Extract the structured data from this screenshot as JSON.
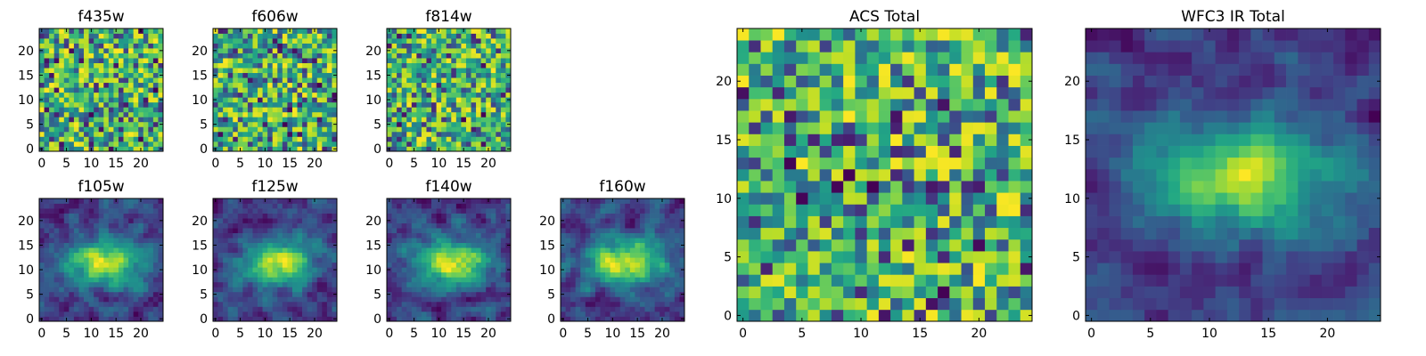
{
  "figure_title": "",
  "chart_data": [
    {
      "type": "heatmap",
      "id": "f435w",
      "title": "f435w",
      "texture": "noisy",
      "xlim": [
        -0.5,
        24.5
      ],
      "ylim": [
        -0.5,
        24.5
      ],
      "xticks": [
        0,
        5,
        10,
        15,
        20
      ],
      "xtick_labels": [
        "0",
        "5",
        "10",
        "15",
        "20"
      ],
      "yticks": [
        0,
        5,
        10,
        15,
        20
      ],
      "ytick_labels": [
        "0",
        "5",
        "10",
        "15",
        "20"
      ],
      "grid_size": [
        25,
        25
      ],
      "colormap": "viridis"
    },
    {
      "type": "heatmap",
      "id": "f606w",
      "title": "f606w",
      "texture": "noisy",
      "xlim": [
        -0.5,
        24.5
      ],
      "ylim": [
        -0.5,
        24.5
      ],
      "xticks": [
        0,
        5,
        10,
        15,
        20
      ],
      "xtick_labels": [
        "0",
        "5",
        "10",
        "15",
        "20"
      ],
      "yticks": [
        0,
        5,
        10,
        15,
        20
      ],
      "ytick_labels": [
        "0",
        "5",
        "10",
        "15",
        "20"
      ],
      "grid_size": [
        25,
        25
      ],
      "colormap": "viridis"
    },
    {
      "type": "heatmap",
      "id": "f814w",
      "title": "f814w",
      "texture": "noisy",
      "xlim": [
        -0.5,
        24.5
      ],
      "ylim": [
        -0.5,
        24.5
      ],
      "xticks": [
        0,
        5,
        10,
        15,
        20
      ],
      "xtick_labels": [
        "0",
        "5",
        "10",
        "15",
        "20"
      ],
      "yticks": [
        0,
        5,
        10,
        15,
        20
      ],
      "ytick_labels": [
        "0",
        "5",
        "10",
        "15",
        "20"
      ],
      "grid_size": [
        25,
        25
      ],
      "colormap": "viridis"
    },
    {
      "type": "heatmap",
      "id": "f105w",
      "title": "f105w",
      "texture": "smooth",
      "xlim": [
        -0.5,
        24.5
      ],
      "ylim": [
        -0.5,
        24.5
      ],
      "xticks": [
        0,
        5,
        10,
        15,
        20
      ],
      "xtick_labels": [
        "0",
        "5",
        "10",
        "15",
        "20"
      ],
      "yticks": [
        0,
        5,
        10,
        15,
        20
      ],
      "ytick_labels": [
        "0",
        "5",
        "10",
        "15",
        "20"
      ],
      "grid_size": [
        25,
        25
      ],
      "colormap": "viridis"
    },
    {
      "type": "heatmap",
      "id": "f125w",
      "title": "f125w",
      "texture": "smooth",
      "xlim": [
        -0.5,
        24.5
      ],
      "ylim": [
        -0.5,
        24.5
      ],
      "xticks": [
        0,
        5,
        10,
        15,
        20
      ],
      "xtick_labels": [
        "0",
        "5",
        "10",
        "15",
        "20"
      ],
      "yticks": [
        0,
        5,
        10,
        15,
        20
      ],
      "ytick_labels": [
        "0",
        "5",
        "10",
        "15",
        "20"
      ],
      "grid_size": [
        25,
        25
      ],
      "colormap": "viridis"
    },
    {
      "type": "heatmap",
      "id": "f140w",
      "title": "f140w",
      "texture": "smooth",
      "xlim": [
        -0.5,
        24.5
      ],
      "ylim": [
        -0.5,
        24.5
      ],
      "xticks": [
        0,
        5,
        10,
        15,
        20
      ],
      "xtick_labels": [
        "0",
        "5",
        "10",
        "15",
        "20"
      ],
      "yticks": [
        0,
        5,
        10,
        15,
        20
      ],
      "ytick_labels": [
        "0",
        "5",
        "10",
        "15",
        "20"
      ],
      "grid_size": [
        25,
        25
      ],
      "colormap": "viridis"
    },
    {
      "type": "heatmap",
      "id": "f160w",
      "title": "f160w",
      "texture": "smooth",
      "xlim": [
        -0.5,
        24.5
      ],
      "ylim": [
        -0.5,
        24.5
      ],
      "xticks": [
        0,
        5,
        10,
        15,
        20
      ],
      "xtick_labels": [
        "0",
        "5",
        "10",
        "15",
        "20"
      ],
      "yticks": [
        0,
        5,
        10,
        15,
        20
      ],
      "ytick_labels": [
        "0",
        "5",
        "10",
        "15",
        "20"
      ],
      "grid_size": [
        25,
        25
      ],
      "colormap": "viridis"
    },
    {
      "type": "heatmap",
      "id": "acs_total",
      "title": "ACS Total",
      "texture": "noisy",
      "xlim": [
        -0.5,
        24.5
      ],
      "ylim": [
        -0.5,
        24.5
      ],
      "xticks": [
        0,
        5,
        10,
        15,
        20
      ],
      "xtick_labels": [
        "0",
        "5",
        "10",
        "15",
        "20"
      ],
      "yticks": [
        0,
        5,
        10,
        15,
        20
      ],
      "ytick_labels": [
        "0",
        "5",
        "10",
        "15",
        "20"
      ],
      "grid_size": [
        25,
        25
      ],
      "colormap": "viridis"
    },
    {
      "type": "heatmap",
      "id": "wfc3_ir_total",
      "title": "WFC3 IR Total",
      "texture": "smooth",
      "xlim": [
        -0.5,
        24.5
      ],
      "ylim": [
        -0.5,
        24.5
      ],
      "xticks": [
        0,
        5,
        10,
        15,
        20
      ],
      "xtick_labels": [
        "0",
        "5",
        "10",
        "15",
        "20"
      ],
      "yticks": [
        0,
        5,
        10,
        15,
        20
      ],
      "ytick_labels": [
        "0",
        "5",
        "10",
        "15",
        "20"
      ],
      "grid_size": [
        25,
        25
      ],
      "colormap": "viridis"
    }
  ]
}
